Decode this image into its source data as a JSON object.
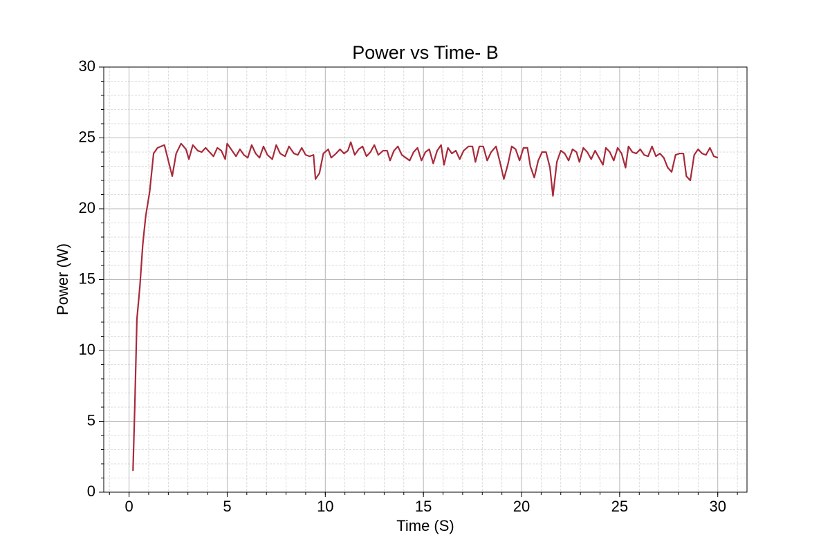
{
  "chart_data": {
    "type": "line",
    "title": "Power vs Time- B",
    "x_label": "Time (S)",
    "y_label": "Power (W)",
    "xlim": [
      -1.29,
      31.49
    ],
    "ylim": [
      0,
      30
    ],
    "xticks": [
      0,
      5,
      10,
      15,
      20,
      25,
      30
    ],
    "yticks": [
      0,
      5,
      10,
      15,
      20,
      25,
      30
    ],
    "grid": true,
    "minor_grid": true,
    "xminor_step": 1,
    "yminor_step": 1,
    "series": [
      {
        "color": "#a82a3a",
        "x": [
          0.2,
          0.3,
          0.4,
          0.55,
          0.7,
          0.85,
          1.05,
          1.25,
          1.45,
          1.8,
          2.2,
          2.4,
          2.65,
          2.9,
          3.05,
          3.25,
          3.5,
          3.7,
          3.9,
          4.1,
          4.3,
          4.5,
          4.7,
          4.9,
          5.0,
          5.2,
          5.45,
          5.65,
          5.85,
          6.05,
          6.25,
          6.45,
          6.65,
          6.85,
          7.05,
          7.3,
          7.5,
          7.7,
          7.95,
          8.15,
          8.4,
          8.6,
          8.8,
          9.0,
          9.2,
          9.4,
          9.5,
          9.7,
          9.9,
          10.15,
          10.3,
          10.55,
          10.75,
          10.95,
          11.15,
          11.3,
          11.5,
          11.7,
          11.9,
          12.1,
          12.3,
          12.5,
          12.7,
          12.95,
          13.15,
          13.3,
          13.5,
          13.7,
          13.9,
          14.1,
          14.3,
          14.5,
          14.7,
          14.9,
          15.1,
          15.3,
          15.5,
          15.7,
          15.9,
          16.05,
          16.25,
          16.45,
          16.65,
          16.85,
          17.05,
          17.3,
          17.5,
          17.65,
          17.85,
          18.05,
          18.25,
          18.45,
          18.7,
          18.9,
          19.1,
          19.3,
          19.5,
          19.7,
          19.9,
          20.1,
          20.3,
          20.45,
          20.65,
          20.85,
          21.05,
          21.25,
          21.45,
          21.6,
          21.8,
          22.0,
          22.2,
          22.4,
          22.6,
          22.8,
          22.95,
          23.15,
          23.35,
          23.55,
          23.75,
          23.95,
          24.15,
          24.3,
          24.5,
          24.7,
          24.9,
          25.1,
          25.3,
          25.45,
          25.65,
          25.85,
          26.05,
          26.25,
          26.45,
          26.65,
          26.85,
          27.05,
          27.25,
          27.45,
          27.65,
          27.85,
          28.05,
          28.25,
          28.4,
          28.6,
          28.8,
          29.0,
          29.2,
          29.4,
          29.6,
          29.8,
          30.0
        ],
        "values": [
          1.5,
          6.5,
          12.2,
          14.5,
          17.5,
          19.5,
          21.2,
          23.9,
          24.3,
          24.5,
          22.3,
          23.9,
          24.6,
          24.2,
          23.5,
          24.5,
          24.1,
          24.0,
          24.3,
          24.0,
          23.7,
          24.3,
          24.1,
          23.5,
          24.6,
          24.2,
          23.7,
          24.2,
          23.8,
          23.6,
          24.5,
          23.9,
          23.6,
          24.4,
          23.8,
          23.5,
          24.5,
          23.9,
          23.7,
          24.4,
          23.9,
          23.8,
          24.3,
          23.8,
          23.7,
          23.8,
          22.1,
          22.5,
          23.9,
          24.2,
          23.6,
          23.9,
          24.2,
          23.9,
          24.1,
          24.7,
          23.8,
          24.2,
          24.4,
          23.7,
          24.0,
          24.5,
          23.8,
          24.1,
          24.1,
          23.4,
          24.1,
          24.4,
          23.8,
          23.6,
          23.4,
          24.0,
          24.3,
          23.4,
          24.0,
          24.2,
          23.2,
          24.1,
          24.5,
          23.1,
          24.3,
          23.9,
          24.1,
          23.5,
          24.1,
          24.4,
          24.4,
          23.3,
          24.4,
          24.4,
          23.4,
          24.0,
          24.4,
          23.3,
          22.1,
          23.1,
          24.4,
          24.2,
          23.4,
          24.3,
          24.3,
          23.0,
          22.2,
          23.4,
          24.0,
          24.0,
          22.9,
          20.9,
          23.3,
          24.1,
          23.9,
          23.4,
          24.2,
          24.0,
          23.3,
          24.3,
          24.0,
          23.5,
          24.1,
          23.6,
          23.1,
          24.3,
          24.0,
          23.4,
          24.3,
          23.9,
          22.9,
          24.4,
          24.0,
          23.9,
          24.2,
          23.8,
          23.7,
          24.4,
          23.7,
          23.9,
          23.6,
          22.9,
          22.6,
          23.8,
          23.9,
          23.9,
          22.3,
          22.0,
          23.8,
          24.2,
          23.9,
          23.8,
          24.3,
          23.7,
          23.6
        ]
      }
    ]
  }
}
